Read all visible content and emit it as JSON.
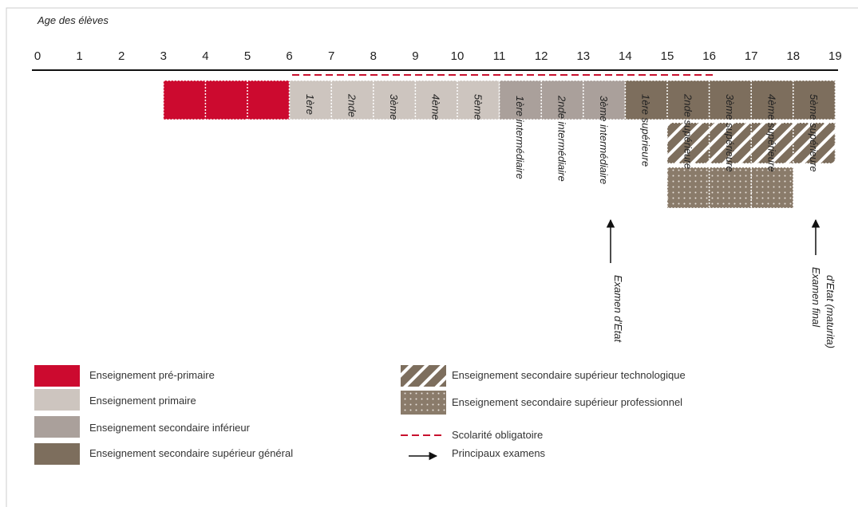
{
  "axis_title": "Age des élèves",
  "ages": [
    0,
    1,
    2,
    3,
    4,
    5,
    6,
    7,
    8,
    9,
    10,
    11,
    12,
    13,
    14,
    15,
    16,
    17,
    18,
    19
  ],
  "grades": {
    "primary": [
      "1ère",
      "2nde",
      "3ème",
      "4ème",
      "5ème"
    ],
    "lower_secondary": [
      "1ère intermédiaire",
      "2nde intermédiaire",
      "3ème intermédiaire"
    ],
    "upper_general": [
      "1ère supérieure",
      "2nde supérieure",
      "3ème supérieure",
      "4ème supérieure",
      "5ème supérieure"
    ]
  },
  "exams": [
    [
      "Examen d'Etat"
    ],
    [
      "Examen final",
      "d'Etat (maturita)"
    ]
  ],
  "legend": [
    "Enseignement pré-primaire",
    "Enseignement primaire",
    "Enseignement secondaire inférieur",
    "Enseignement secondaire supérieur général",
    "Enseignement secondaire supérieur technologique",
    "Enseignement secondaire supérieur professionnel",
    "Scolarité obligatoire",
    "Principaux examens"
  ]
}
